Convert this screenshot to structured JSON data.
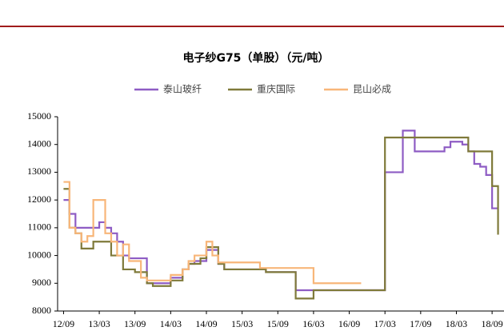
{
  "chart_data": {
    "type": "step-line",
    "title": "电子纱G75（单股）（元/吨）",
    "xlim": [
      "12/08",
      "18/11"
    ],
    "xticks": [
      "12/09",
      "13/03",
      "13/09",
      "14/03",
      "14/09",
      "15/03",
      "15/09",
      "16/03",
      "16/09",
      "17/03",
      "17/09",
      "18/03",
      "18/09"
    ],
    "ylim": [
      8000,
      15000
    ],
    "yticks": [
      8000,
      9000,
      10000,
      11000,
      12000,
      13000,
      14000,
      15000
    ],
    "series": [
      {
        "name": "泰山玻纤",
        "color": "#8e5cc4",
        "x": [
          "12/09",
          "12/10",
          "12/11",
          "13/03",
          "13/04",
          "13/05",
          "13/06",
          "13/07",
          "13/08",
          "13/11",
          "14/03",
          "14/05",
          "14/06",
          "14/07",
          "14/09",
          "14/11",
          "14/12",
          "15/07",
          "15/12",
          "17/03",
          "17/06",
          "17/08",
          "18/01",
          "18/02",
          "18/04",
          "18/05",
          "18/06",
          "18/07",
          "18/08",
          "18/09",
          "18/10"
        ],
        "values": [
          12000,
          11500,
          11000,
          11200,
          11000,
          10800,
          10500,
          10000,
          9900,
          9000,
          9200,
          9500,
          9700,
          9800,
          10200,
          9700,
          9500,
          9400,
          8750,
          13000,
          14500,
          13750,
          13900,
          14100,
          14000,
          13750,
          13300,
          13200,
          12900,
          11700,
          11700
        ]
      },
      {
        "name": "重庆国际",
        "color": "#7f7a3a",
        "x": [
          "12/09",
          "12/10",
          "12/11",
          "12/12",
          "13/02",
          "13/05",
          "13/07",
          "13/09",
          "13/11",
          "13/12",
          "14/03",
          "14/05",
          "14/06",
          "14/08",
          "14/09",
          "14/11",
          "14/12",
          "15/07",
          "15/12",
          "16/03",
          "17/03",
          "18/05",
          "18/09",
          "18/10"
        ],
        "values": [
          12400,
          11000,
          10800,
          10250,
          10500,
          10000,
          9500,
          9400,
          9000,
          8900,
          9100,
          9500,
          9700,
          9900,
          10300,
          9700,
          9500,
          9400,
          8450,
          8750,
          14250,
          13750,
          12500,
          10750
        ]
      },
      {
        "name": "昆山必成",
        "color": "#f8b679",
        "x": [
          "12/09",
          "12/10",
          "12/11",
          "12/12",
          "13/01",
          "13/02",
          "13/04",
          "13/05",
          "13/06",
          "13/07",
          "13/08",
          "13/10",
          "13/11",
          "14/03",
          "14/05",
          "14/06",
          "14/07",
          "14/09",
          "14/10",
          "14/11",
          "15/06",
          "16/03",
          "16/11"
        ],
        "values": [
          12650,
          11000,
          10800,
          10500,
          10700,
          12000,
          10800,
          10500,
          10000,
          10400,
          9800,
          9200,
          9100,
          9300,
          9500,
          9800,
          10000,
          10500,
          10000,
          9750,
          9550,
          9000,
          9000
        ]
      }
    ]
  }
}
